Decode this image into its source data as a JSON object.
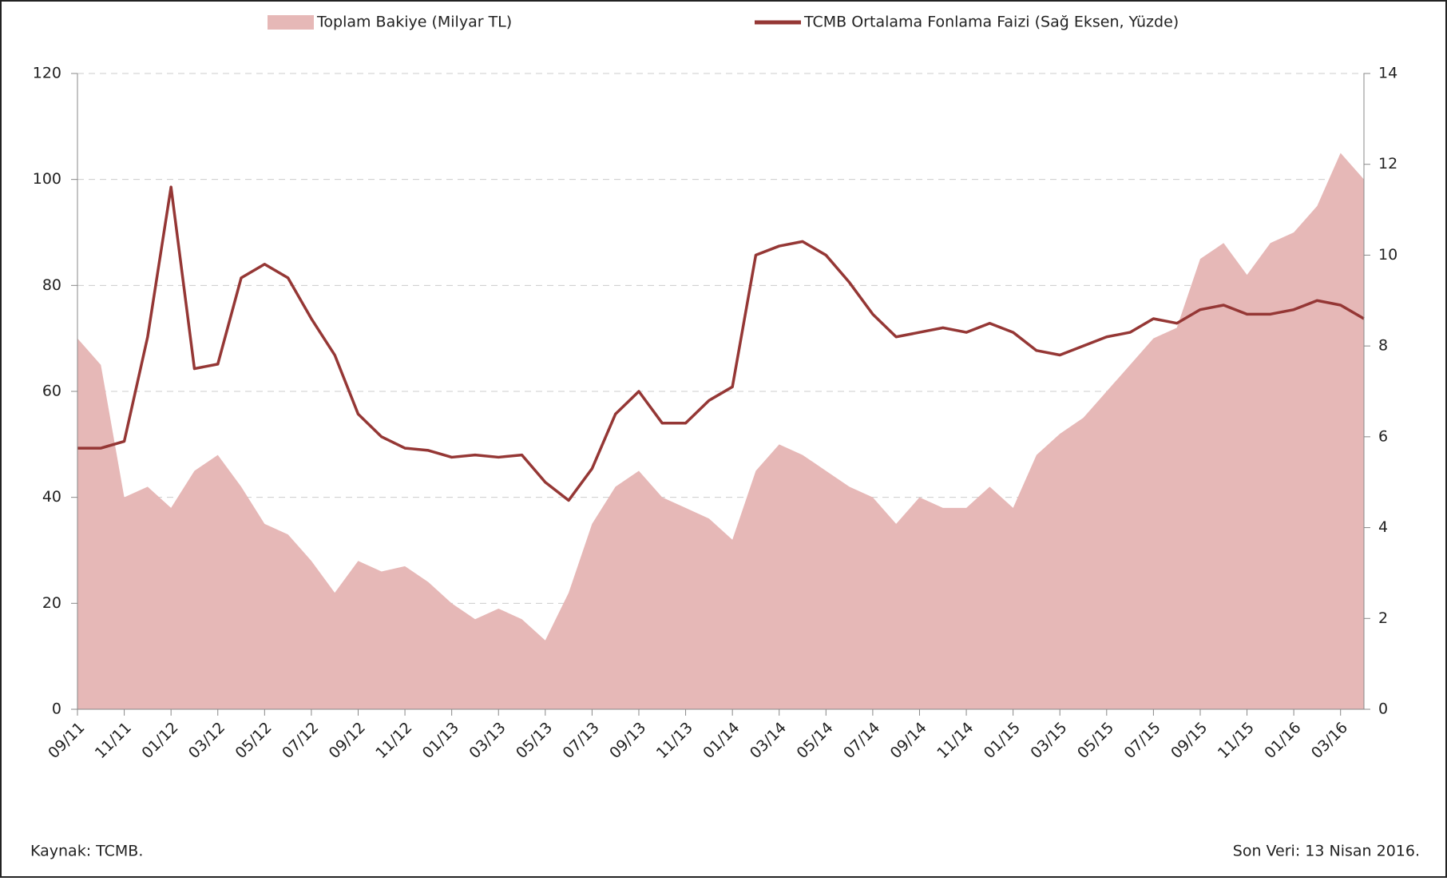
{
  "chart_data": {
    "type": "area-line",
    "source": "Kaynak: TCMB.",
    "note": "Son Veri: 13 Nisan 2016.",
    "categories": [
      "09/11",
      null,
      "11/11",
      null,
      "01/12",
      null,
      "03/12",
      null,
      "05/12",
      null,
      "07/12",
      null,
      "09/12",
      null,
      "11/12",
      null,
      "01/13",
      null,
      "03/13",
      null,
      "05/13",
      null,
      "07/13",
      null,
      "09/13",
      null,
      "11/13",
      null,
      "01/14",
      null,
      "03/14",
      null,
      "05/14",
      null,
      "07/14",
      null,
      "09/14",
      null,
      "11/14",
      null,
      "01/15",
      null,
      "03/15",
      null,
      "05/15",
      null,
      "07/15",
      null,
      "09/15",
      null,
      "11/15",
      null,
      "01/16",
      null,
      "03/16",
      null
    ],
    "series": [
      {
        "name": "Toplam Bakiye (Milyar TL)",
        "color": "#e6b8b7",
        "kind": "area",
        "values": [
          70,
          65,
          40,
          42,
          38,
          45,
          48,
          42,
          35,
          33,
          28,
          22,
          28,
          26,
          27,
          24,
          20,
          17,
          19,
          17,
          13,
          22,
          35,
          42,
          45,
          40,
          38,
          36,
          32,
          45,
          50,
          48,
          45,
          42,
          40,
          35,
          40,
          38,
          38,
          42,
          38,
          48,
          52,
          55,
          60,
          65,
          70,
          72,
          85,
          88,
          82,
          88,
          90,
          95,
          105,
          100
        ]
      },
      {
        "name": "TCMB Ortalama Fonlama Faizi (Sağ Eksen, Yüzde)",
        "color": "#953735",
        "kind": "line",
        "axis": "y2",
        "values": [
          5.75,
          5.75,
          5.9,
          8.2,
          11.5,
          7.5,
          7.6,
          9.5,
          9.8,
          9.5,
          8.6,
          7.8,
          6.5,
          6.0,
          5.75,
          5.7,
          5.55,
          5.6,
          5.55,
          5.6,
          5.0,
          4.6,
          5.3,
          6.5,
          7.0,
          6.3,
          6.3,
          6.8,
          7.1,
          10.0,
          10.2,
          10.3,
          10.0,
          9.4,
          8.7,
          8.2,
          8.3,
          8.4,
          8.3,
          8.5,
          8.3,
          7.9,
          7.8,
          8.0,
          8.2,
          8.3,
          8.6,
          8.5,
          8.8,
          8.9,
          8.7,
          8.7,
          8.8,
          9.0,
          8.9,
          8.6
        ]
      }
    ],
    "ylim": [
      0,
      120
    ],
    "yticks": [
      0,
      20,
      40,
      60,
      80,
      100,
      120
    ],
    "y2lim": [
      0,
      14
    ],
    "y2ticks": [
      0,
      2,
      4,
      6,
      8,
      10,
      12,
      14
    ],
    "grid": true
  }
}
